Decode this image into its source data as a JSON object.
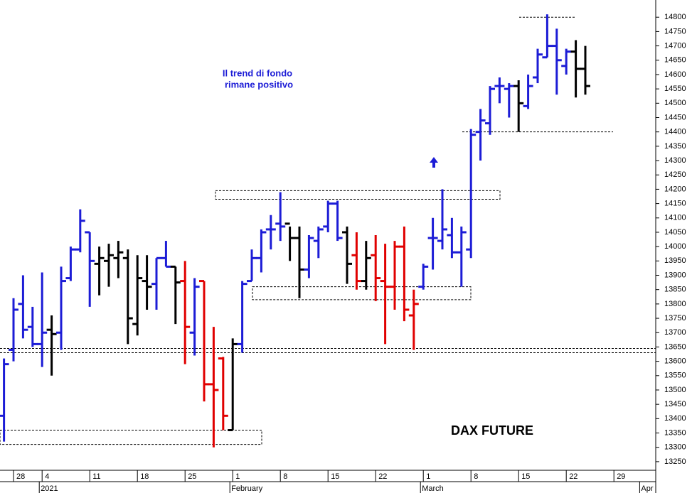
{
  "chart_data": {
    "type": "ohlc",
    "label": "DAX FUTURE",
    "annotations": [
      "Il trend di fondo",
      "rimane positivo"
    ],
    "categories": [
      null,
      "28",
      null,
      null,
      "4",
      null,
      null,
      null,
      null,
      "11",
      null,
      null,
      null,
      null,
      "18",
      null,
      null,
      null,
      null,
      "25",
      null,
      null,
      null,
      null,
      "1",
      null,
      null,
      null,
      null,
      "8",
      null,
      null,
      null,
      null,
      "15",
      null,
      null,
      null,
      null,
      "22",
      null,
      null,
      null,
      null,
      "1",
      null,
      null,
      null,
      null,
      "8",
      null,
      null,
      null,
      null,
      "15",
      null,
      null,
      null,
      null,
      "22",
      null,
      null,
      null,
      null,
      "29",
      null,
      null,
      null
    ],
    "periods": [
      null,
      null,
      null,
      null,
      "2021",
      null,
      null,
      null,
      null,
      null,
      null,
      null,
      null,
      null,
      null,
      null,
      null,
      null,
      null,
      null,
      null,
      null,
      null,
      null,
      "February",
      null,
      null,
      null,
      null,
      null,
      null,
      null,
      null,
      null,
      null,
      null,
      null,
      null,
      null,
      null,
      null,
      null,
      null,
      null,
      "March",
      null,
      null,
      null,
      null,
      null,
      null,
      null,
      null,
      null,
      null,
      null,
      null,
      null,
      null,
      null,
      null,
      null,
      null,
      null,
      null,
      null,
      null,
      "Apr"
    ],
    "series": [
      {
        "open": [
          13410,
          13640,
          13800,
          13720,
          13660,
          13710,
          13700,
          13890,
          13990,
          14050,
          13940,
          13950,
          13960,
          13960,
          13730,
          13880,
          13870,
          13960,
          13930,
          13880,
          13700,
          13880,
          13520,
          13610,
          13360,
          13660,
          13880,
          13960,
          14060,
          14080,
          14080,
          14030,
          13920,
          14020,
          14070,
          14150,
          14050,
          13970,
          13880,
          13970,
          13880,
          13860,
          14000,
          13760,
          13860,
          14030,
          14020,
          14040,
          13980,
          13990,
          14400,
          14430,
          14560,
          14550,
          14560,
          14490,
          14590,
          14660,
          14700,
          14630,
          14680,
          14620,
          null,
          null,
          null,
          null,
          null,
          null
        ],
        "high": [
          13610,
          13820,
          13900,
          13790,
          13910,
          13760,
          13930,
          14000,
          14130,
          14050,
          14000,
          14010,
          14020,
          13990,
          13970,
          13970,
          13960,
          14020,
          13930,
          13950,
          13890,
          13880,
          13720,
          13615,
          13680,
          13880,
          13990,
          14060,
          14110,
          14190,
          14070,
          14070,
          14040,
          14070,
          14160,
          14160,
          14070,
          14050,
          14020,
          14040,
          14010,
          14020,
          14070,
          13850,
          13940,
          14100,
          14200,
          14100,
          14070,
          14410,
          14480,
          14560,
          14590,
          14570,
          14580,
          14600,
          14690,
          14810,
          14760,
          14690,
          14720,
          14700,
          null,
          null,
          null,
          null,
          null,
          null
        ],
        "low": [
          13320,
          13600,
          13680,
          13650,
          13580,
          13550,
          13640,
          13880,
          13980,
          13790,
          13830,
          13860,
          13890,
          13660,
          13690,
          13780,
          13780,
          13930,
          13730,
          13590,
          13620,
          13460,
          13300,
          13360,
          13360,
          13630,
          13880,
          13910,
          13990,
          14020,
          13950,
          13820,
          13890,
          13960,
          14050,
          14020,
          13870,
          13850,
          13850,
          13810,
          13660,
          13780,
          13740,
          13640,
          13850,
          13920,
          13990,
          13960,
          13860,
          13960,
          14300,
          14390,
          14500,
          14450,
          14400,
          14480,
          14570,
          14660,
          14530,
          14600,
          14520,
          14530,
          null,
          null,
          null,
          null,
          null,
          null
        ],
        "close": [
          13590,
          13780,
          13710,
          13660,
          13700,
          13695,
          13880,
          13990,
          14090,
          13950,
          13960,
          13970,
          13980,
          13750,
          13890,
          13860,
          13960,
          13930,
          13875,
          13720,
          13860,
          13520,
          13500,
          13410,
          13660,
          13870,
          13960,
          14050,
          14060,
          14070,
          14030,
          13920,
          14030,
          14060,
          14150,
          14030,
          13940,
          13880,
          13960,
          13890,
          13860,
          14000,
          13780,
          13800,
          13930,
          14030,
          14060,
          13980,
          14050,
          14390,
          14440,
          14550,
          14560,
          14560,
          14500,
          14560,
          14670,
          14700,
          14650,
          14680,
          14620,
          14560,
          null,
          null,
          null,
          null,
          null,
          null
        ],
        "colors": [
          "#1c1cd6",
          "#1c1cd6",
          "#1c1cd6",
          "#1c1cd6",
          "#1c1cd6",
          "#000000",
          "#1c1cd6",
          "#1c1cd6",
          "#1c1cd6",
          "#1c1cd6",
          "#000000",
          "#000000",
          "#000000",
          "#000000",
          "#000000",
          "#000000",
          "#1c1cd6",
          "#1c1cd6",
          "#000000",
          "#e00000",
          "#1c1cd6",
          "#e00000",
          "#e00000",
          "#e00000",
          "#000000",
          "#1c1cd6",
          "#1c1cd6",
          "#1c1cd6",
          "#1c1cd6",
          "#1c1cd6",
          "#000000",
          "#000000",
          "#1c1cd6",
          "#1c1cd6",
          "#1c1cd6",
          "#1c1cd6",
          "#000000",
          "#e00000",
          "#000000",
          "#e00000",
          "#e00000",
          "#e00000",
          "#e00000",
          "#e00000",
          "#1c1cd6",
          "#1c1cd6",
          "#1c1cd6",
          "#1c1cd6",
          "#1c1cd6",
          "#1c1cd6",
          "#1c1cd6",
          "#1c1cd6",
          "#1c1cd6",
          "#1c1cd6",
          "#000000",
          "#1c1cd6",
          "#1c1cd6",
          "#1c1cd6",
          "#1c1cd6",
          "#1c1cd6",
          "#000000",
          "#000000",
          null,
          null,
          null,
          null,
          null,
          null
        ]
      }
    ],
    "zones": [
      [
        13310,
        13360
      ],
      [
        14165,
        14195
      ],
      [
        13815,
        13860
      ]
    ],
    "levels": [
      13630,
      13645,
      14400,
      14800
    ],
    "ylim": [
      13220,
      14860
    ],
    "yticks": [
      13250,
      13300,
      13350,
      13400,
      13450,
      13500,
      13550,
      13600,
      13650,
      13700,
      13750,
      13800,
      13850,
      13900,
      13950,
      14000,
      14050,
      14100,
      14150,
      14200,
      14250,
      14300,
      14350,
      14400,
      14450,
      14500,
      14550,
      14600,
      14650,
      14700,
      14750,
      14800
    ],
    "grid": false
  }
}
